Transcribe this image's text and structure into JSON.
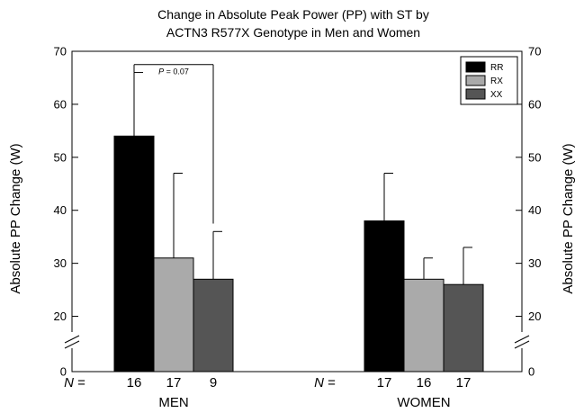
{
  "chart_data": {
    "type": "bar",
    "title_lines": [
      "Change in Absolute Peak Power (PP) with ST by",
      "ACTN3 R577X Genotype in Men and Women"
    ],
    "ylabel": "Absolute PP Change (W)",
    "ylabel_right": "Absolute PP Change (W)",
    "ylim": [
      0,
      70
    ],
    "axis_break": [
      0,
      15
    ],
    "yticks": [
      0,
      20,
      30,
      40,
      50,
      60,
      70
    ],
    "y2ticks": [
      0,
      20,
      30,
      40,
      50,
      60,
      70
    ],
    "categories": [
      "MEN",
      "WOMEN"
    ],
    "series": [
      {
        "name": "RR",
        "color": "#000000",
        "values": [
          54,
          38
        ],
        "errors": [
          12,
          9
        ],
        "n": [
          "16",
          "17"
        ]
      },
      {
        "name": "RX",
        "color": "#aaaaaa",
        "values": [
          31,
          27
        ],
        "errors": [
          16,
          4
        ],
        "n": [
          "17",
          "16"
        ]
      },
      {
        "name": "XX",
        "color": "#555555",
        "values": [
          27,
          26
        ],
        "errors": [
          9,
          7
        ],
        "n": [
          "9",
          "17"
        ]
      }
    ],
    "n_prefix": "N =",
    "annotation": {
      "text": "P = 0.07",
      "group": 0,
      "from_series": 0,
      "to_series": 2
    },
    "legend_position": "top-right",
    "grid": false
  }
}
